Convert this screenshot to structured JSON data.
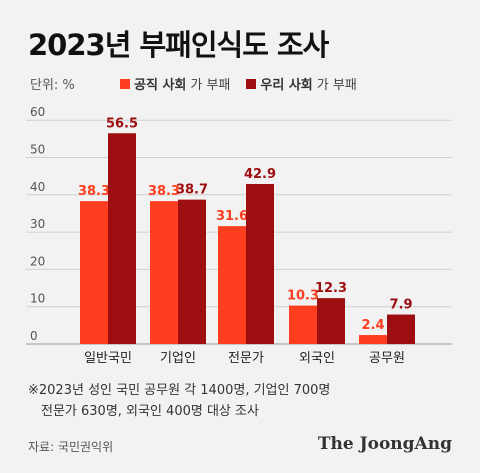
{
  "title": "2023년 부패인식도 조사",
  "unit": "단위: %",
  "legend": [
    {
      "bold": "공직 사회",
      "rest": "가 부패",
      "color": "#ff3d1f"
    },
    {
      "bold": "우리 사회",
      "rest": "가 부패",
      "color": "#9c0e10"
    }
  ],
  "note": {
    "line1": "※2023년 성인 국민 공무원 각 1400명, 기업인 700명",
    "line2": "전문가 630명, 외국인 400명 대상 조사"
  },
  "source": "자료: 국민권익위",
  "brand": "The JoongAng",
  "chart_data": {
    "type": "bar",
    "categories": [
      "일반국민",
      "기업인",
      "전문가",
      "외국인",
      "공무원"
    ],
    "series": [
      {
        "name": "공직 사회가 부패",
        "values": [
          38.3,
          38.3,
          31.6,
          10.3,
          2.4
        ],
        "color": "#ff3d1f"
      },
      {
        "name": "우리 사회가 부패",
        "values": [
          56.5,
          38.7,
          42.9,
          12.3,
          7.9
        ],
        "color": "#9c0e10"
      }
    ],
    "yticks": [
      0,
      10,
      20,
      30,
      40,
      50,
      60
    ],
    "ylim": [
      0,
      60
    ],
    "grid": true,
    "legend_position": "top"
  }
}
